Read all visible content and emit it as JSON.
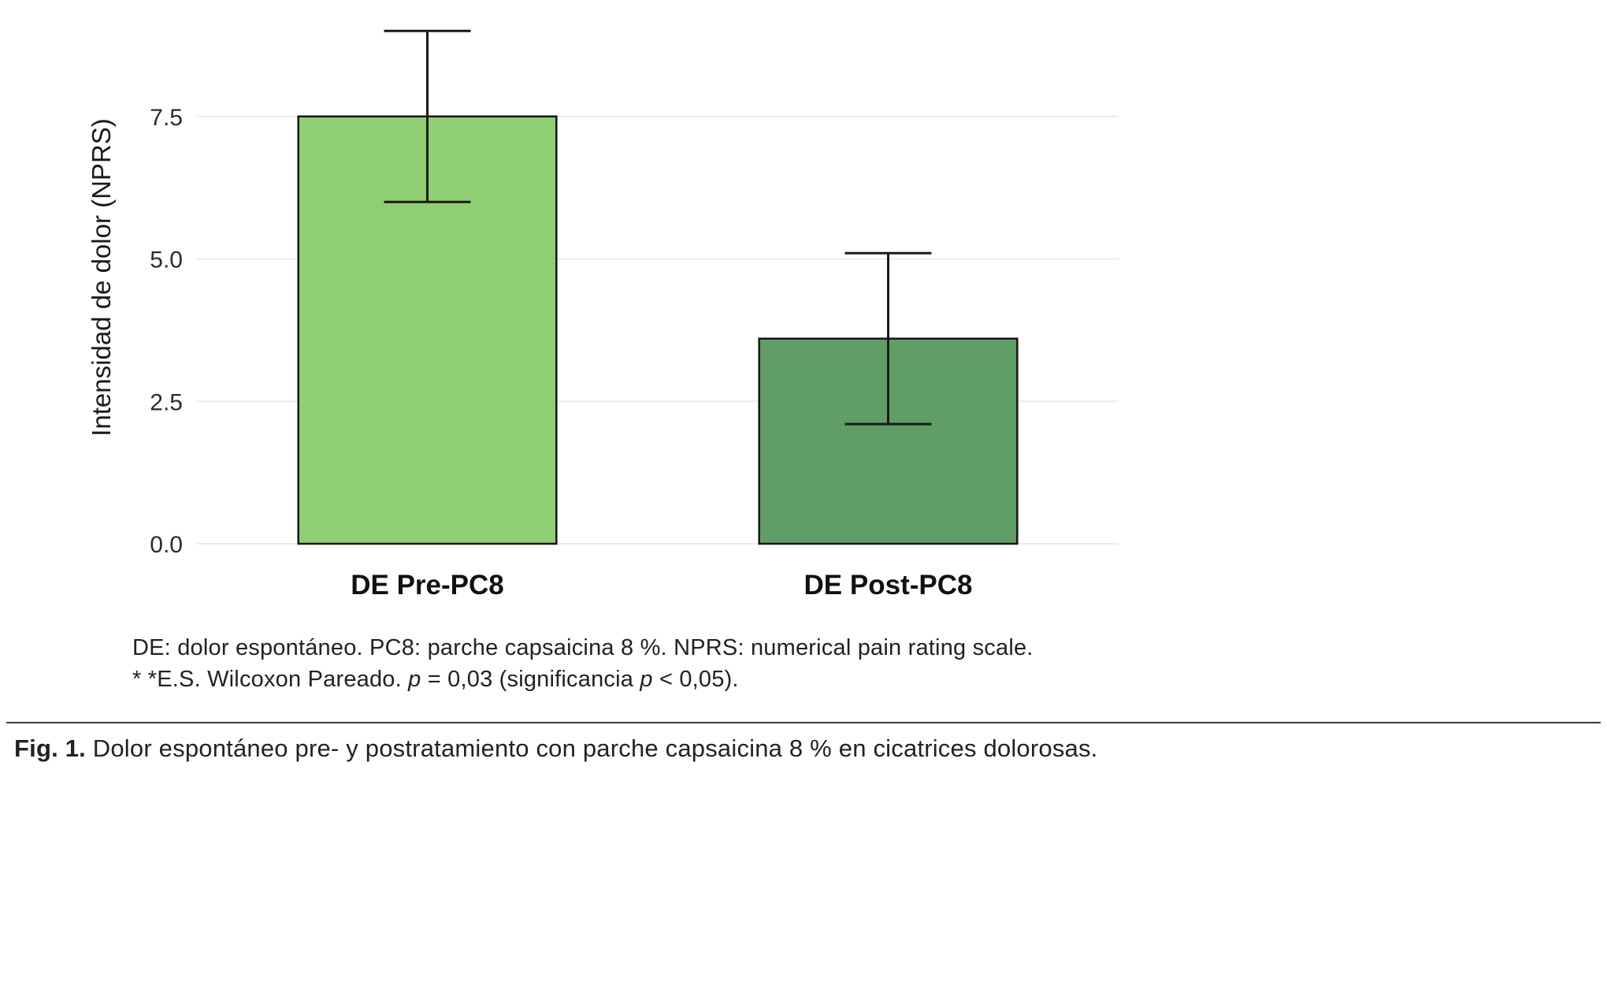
{
  "chart_data": {
    "type": "bar",
    "title": "",
    "categories": [
      "DE Pre-PC8",
      "DE Post-PC8"
    ],
    "values": [
      7.5,
      3.6
    ],
    "errors": {
      "low": [
        6.0,
        2.1
      ],
      "high": [
        9.0,
        5.1
      ]
    },
    "bar_colors": [
      "#8fce72",
      "#5f9e66"
    ],
    "bar_edge_color": "#141414",
    "xlabel": "",
    "ylabel": "Intensidad de dolor (NPRS)",
    "yticks": [
      0,
      2.5,
      5,
      7.5
    ],
    "ytick_labels": [
      "0.0",
      "2.5",
      "5.0",
      "7.5"
    ],
    "ylim": [
      0,
      9.35
    ],
    "grid": true,
    "grid_color": "#ebebeb",
    "legend_position": "none"
  },
  "notes": {
    "line1": "DE: dolor espontáneo. PC8: parche capsaicina 8 %. NPRS: numerical pain rating scale.",
    "line2": {
      "prefix": "* *E.S. Wilcoxon Pareado. ",
      "p1": "p",
      "mid": " = 0,03 (significancia ",
      "p2": "p",
      "suffix": " < 0,05)."
    }
  },
  "caption": {
    "label": "Fig. 1.",
    "text": " Dolor espontáneo pre- y postratamiento con parche capsaicina 8 % en cicatrices dolorosas."
  }
}
